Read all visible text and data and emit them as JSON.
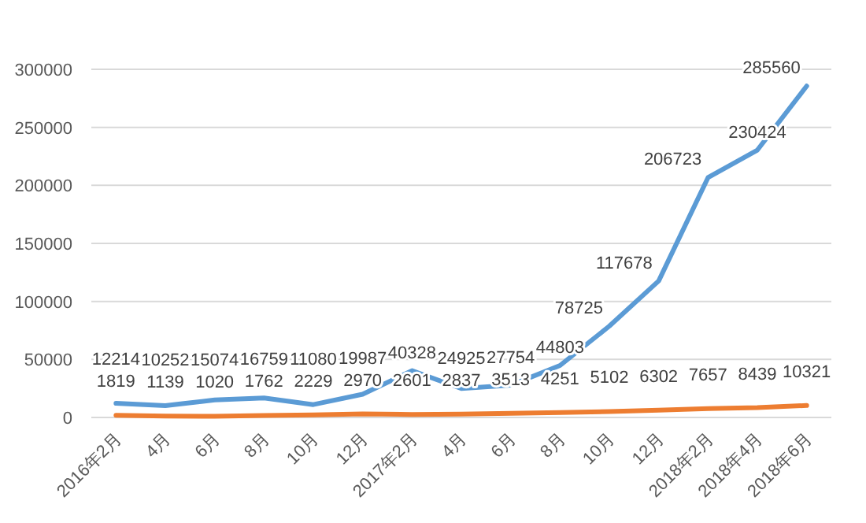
{
  "chart_data": {
    "type": "line",
    "categories": [
      "2016年2月",
      "4月",
      "6月",
      "8月",
      "10月",
      "12月",
      "2017年2月",
      "4月",
      "6月",
      "8月",
      "10月",
      "12月",
      "2018年2月",
      "2018年4月",
      "2018年6月"
    ],
    "series": [
      {
        "color": "#5b9bd5",
        "values": [
          12214,
          10252,
          15074,
          16759,
          11080,
          19987,
          40328,
          24925,
          27754,
          44803,
          78725,
          117678,
          206723,
          230424,
          285560
        ]
      },
      {
        "color": "#ed7d31",
        "values": [
          1819,
          1139,
          1020,
          1762,
          2229,
          2970,
          2601,
          2837,
          3513,
          4251,
          5102,
          6302,
          7657,
          8439,
          10321
        ]
      }
    ],
    "ylim": [
      0,
      300000
    ],
    "yticks": [
      0,
      50000,
      100000,
      150000,
      200000,
      250000,
      300000
    ],
    "grid": "y",
    "data_labels": true,
    "marker": "none",
    "line_style": "solid"
  }
}
